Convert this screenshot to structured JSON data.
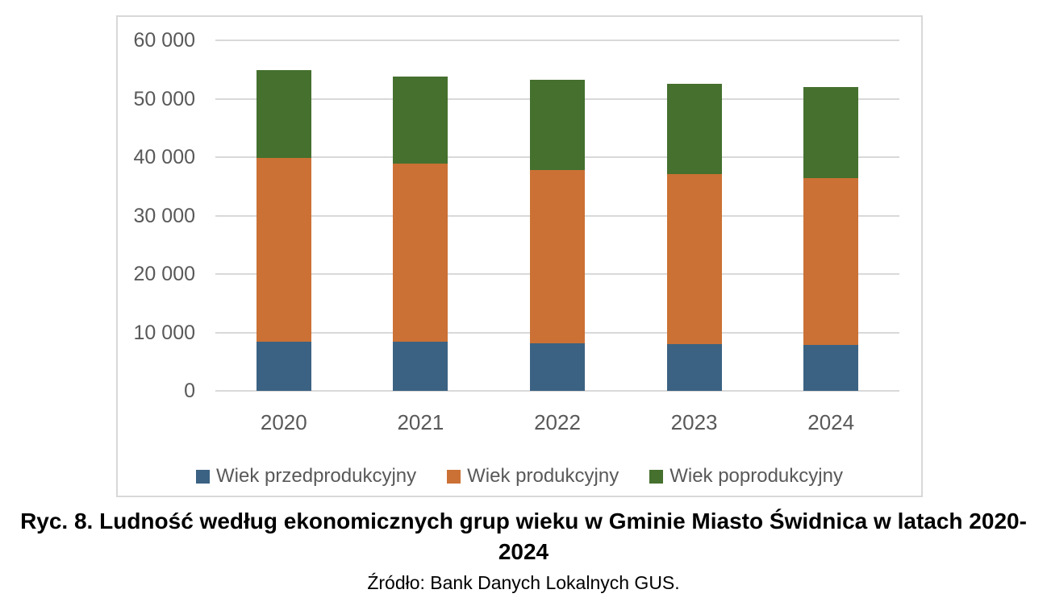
{
  "chart_data": {
    "type": "bar",
    "stacked": true,
    "categories": [
      "2020",
      "2021",
      "2022",
      "2023",
      "2024"
    ],
    "series": [
      {
        "name": "Wiek przedprodukcyjny",
        "color": "#3b6282",
        "values": [
          8400,
          8350,
          8200,
          8000,
          7850
        ]
      },
      {
        "name": "Wiek produkcyjny",
        "color": "#cb7135",
        "values": [
          31400,
          30500,
          29600,
          29100,
          28500
        ]
      },
      {
        "name": "Wiek poprodukcyjny",
        "color": "#45702e",
        "values": [
          15100,
          15000,
          15400,
          15500,
          15650
        ]
      }
    ],
    "title": "",
    "xlabel": "",
    "ylabel": "",
    "ylim": [
      0,
      60000
    ],
    "ytick_step": 10000,
    "ytick_labels": [
      "0",
      "10 000",
      "20 000",
      "30 000",
      "40 000",
      "50 000",
      "60 000"
    ],
    "grid": true,
    "legend_position": "bottom",
    "gridline_color": "#d9d9d9",
    "axis_text_color": "#595959"
  },
  "caption": {
    "title": "Ryc. 8. Ludność według ekonomicznych grup wieku w Gminie Miasto Świdnica w latach 2020-2024",
    "source": "Źródło: Bank Danych Lokalnych GUS."
  }
}
